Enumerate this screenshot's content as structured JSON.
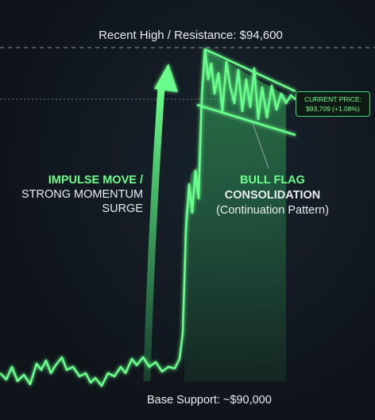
{
  "resistance_label": "Recent High / Resistance: $94,600",
  "impulse": {
    "line1": "IMPULSE MOVE /",
    "line2": "STRONG MOMENTUM",
    "line3": "SURGE"
  },
  "flag": {
    "line1": "BULL FLAG",
    "line2": "CONSOLIDATION",
    "line3": "(Continuation Pattern)"
  },
  "current_price": {
    "label": "CURRENT PRICE:",
    "value": "$93,709 (+1.08%)"
  },
  "support_label": "Base Support: ~$90,000"
}
